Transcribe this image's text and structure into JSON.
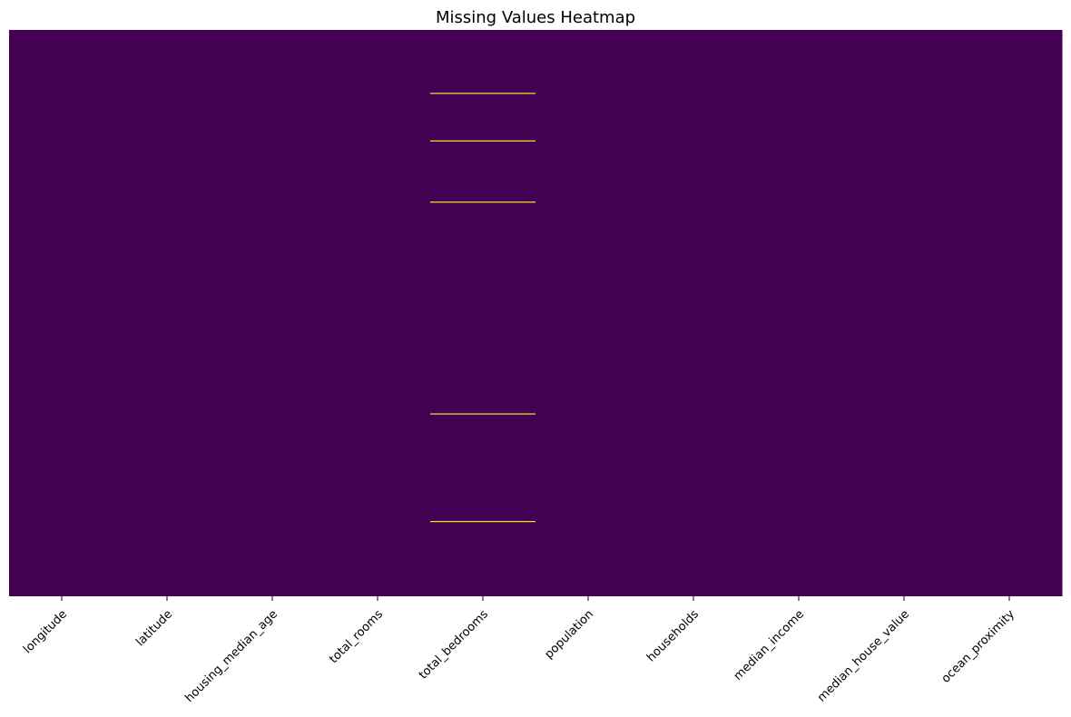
{
  "chart_data": {
    "type": "heatmap",
    "title": "Missing Values Heatmap",
    "xlabel": "",
    "ylabel": "",
    "columns": [
      "longitude",
      "latitude",
      "housing_median_age",
      "total_rooms",
      "total_bedrooms",
      "population",
      "households",
      "median_income",
      "median_house_value",
      "ocean_proximity"
    ],
    "value_scale": {
      "present": 0,
      "missing": 1
    },
    "colors": {
      "present": "#440154",
      "missing": "#fde725"
    },
    "missing_rows": [
      {
        "column": "total_bedrooms",
        "row_fraction": 0.112
      },
      {
        "column": "total_bedrooms",
        "row_fraction": 0.196
      },
      {
        "column": "total_bedrooms",
        "row_fraction": 0.304
      },
      {
        "column": "total_bedrooms",
        "row_fraction": 0.678
      },
      {
        "column": "total_bedrooms",
        "row_fraction": 0.868
      }
    ],
    "y_ticks": "none",
    "colorbar": false,
    "grid": false
  }
}
